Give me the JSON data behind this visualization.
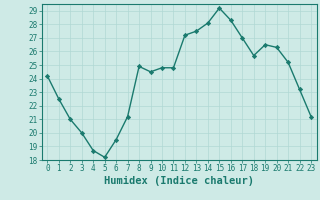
{
  "x": [
    0,
    1,
    2,
    3,
    4,
    5,
    6,
    7,
    8,
    9,
    10,
    11,
    12,
    13,
    14,
    15,
    16,
    17,
    18,
    19,
    20,
    21,
    22,
    23
  ],
  "y": [
    24.2,
    22.5,
    21.0,
    20.0,
    18.7,
    18.2,
    19.5,
    21.2,
    24.9,
    24.5,
    24.8,
    24.8,
    27.2,
    27.5,
    28.1,
    29.2,
    28.3,
    27.0,
    25.7,
    26.5,
    26.3,
    25.2,
    23.2,
    21.2
  ],
  "line_color": "#1a7a6e",
  "marker": "D",
  "markersize": 2.2,
  "linewidth": 1.0,
  "bg_color": "#ceeae6",
  "grid_color": "#b0d8d4",
  "xlabel": "Humidex (Indice chaleur)",
  "xlim": [
    -0.5,
    23.5
  ],
  "ylim": [
    18,
    29.5
  ],
  "yticks": [
    18,
    19,
    20,
    21,
    22,
    23,
    24,
    25,
    26,
    27,
    28,
    29
  ],
  "xticks": [
    0,
    1,
    2,
    3,
    4,
    5,
    6,
    7,
    8,
    9,
    10,
    11,
    12,
    13,
    14,
    15,
    16,
    17,
    18,
    19,
    20,
    21,
    22,
    23
  ],
  "tick_fontsize": 5.5,
  "xlabel_fontsize": 7.5,
  "tick_color": "#1a7a6e",
  "axis_color": "#1a7a6e",
  "grid_linewidth": 0.5,
  "spine_linewidth": 0.8
}
